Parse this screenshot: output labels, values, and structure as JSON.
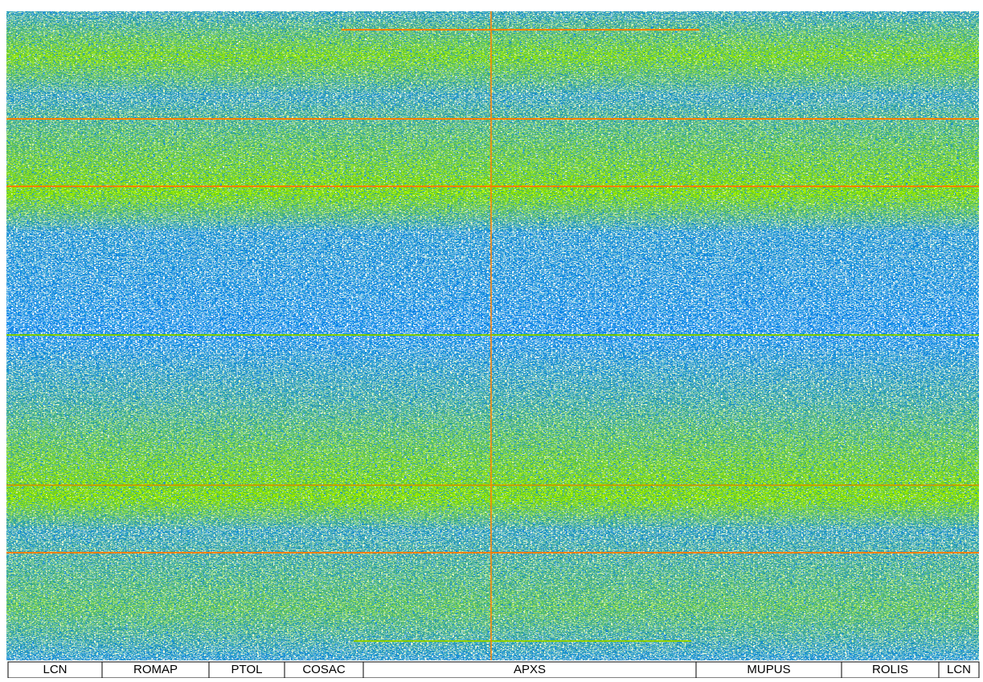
{
  "modules": [
    {
      "label": "LCN"
    },
    {
      "label": "ROMAP"
    },
    {
      "label": "PTOL"
    },
    {
      "label": "COSAC"
    },
    {
      "label": "APXS"
    },
    {
      "label": "MUPUS"
    },
    {
      "label": "ROLIS"
    },
    {
      "label": "LCN"
    }
  ]
}
